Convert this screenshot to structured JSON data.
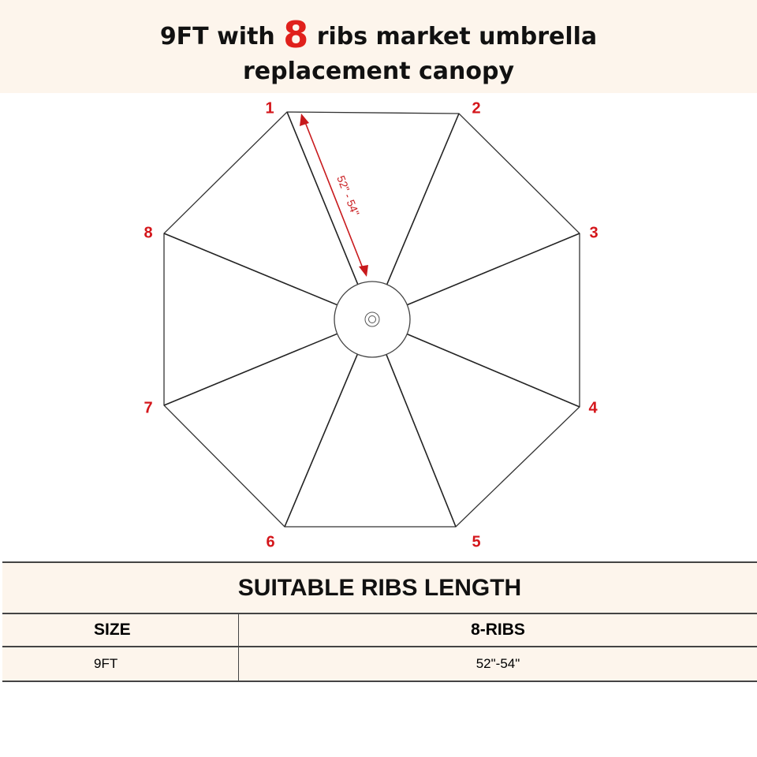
{
  "header": {
    "title_pre": "9FT with ",
    "title_number": "8",
    "title_post": " ribs market umbrella",
    "title_line2": "replacement canopy"
  },
  "diagram": {
    "rib_labels": [
      "1",
      "2",
      "3",
      "4",
      "5",
      "6",
      "7",
      "8"
    ],
    "measurement_label": "52\" - 54\"",
    "colors": {
      "label": "#d4161b",
      "arrow": "#c8191c",
      "line": "#222222"
    }
  },
  "table": {
    "title": "SUITABLE RIBS LENGTH",
    "headers": [
      "SIZE",
      "8-RIBS"
    ],
    "rows": [
      [
        "9FT",
        "52\"-54\""
      ]
    ]
  }
}
